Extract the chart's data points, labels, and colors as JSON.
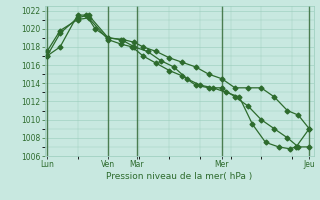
{
  "bg_color": "#c8e8e0",
  "grid_color": "#99ccbb",
  "line_color": "#2d6b2d",
  "marker_color": "#2d6b2d",
  "xlabel": "Pression niveau de la mer( hPa )",
  "ylim": [
    1006.0,
    1022.5
  ],
  "yticks": [
    1007,
    1009,
    1011,
    1013,
    1015,
    1017,
    1019,
    1021
  ],
  "vline_color": "#336633",
  "line1_x": [
    0.0,
    0.3,
    0.7,
    0.95,
    1.4,
    1.75,
    2.0,
    2.2,
    2.5,
    2.8,
    3.1,
    3.4,
    3.7,
    4.0,
    4.3,
    4.6,
    4.9,
    5.2,
    5.5,
    5.75,
    6.0
  ],
  "line1_y": [
    1017.0,
    1019.5,
    1021.2,
    1021.5,
    1019.0,
    1018.8,
    1018.5,
    1018.0,
    1017.5,
    1016.8,
    1016.3,
    1015.8,
    1015.0,
    1014.5,
    1013.5,
    1013.5,
    1013.5,
    1012.5,
    1011.0,
    1010.5,
    1009.0
  ],
  "line2_x": [
    0.0,
    0.3,
    0.7,
    0.95,
    1.4,
    1.7,
    1.95,
    2.2,
    2.5,
    2.8,
    3.1,
    3.4,
    3.7,
    4.0,
    4.3,
    4.6,
    4.9,
    5.2,
    5.5,
    5.75,
    6.0
  ],
  "line2_y": [
    1017.5,
    1019.8,
    1021.0,
    1021.2,
    1018.8,
    1018.3,
    1018.0,
    1017.0,
    1016.2,
    1015.4,
    1014.8,
    1013.8,
    1013.5,
    1013.5,
    1012.5,
    1011.5,
    1010.0,
    1009.0,
    1008.0,
    1007.0,
    1007.0
  ],
  "line3_x": [
    0.0,
    0.3,
    0.7,
    0.9,
    1.1,
    1.4,
    1.7,
    2.0,
    2.3,
    2.6,
    2.9,
    3.2,
    3.5,
    3.8,
    4.1,
    4.4,
    4.7,
    5.0,
    5.3,
    5.55,
    5.7,
    6.0
  ],
  "line3_y": [
    1017.0,
    1018.0,
    1021.5,
    1021.5,
    1020.0,
    1019.0,
    1018.8,
    1018.0,
    1017.5,
    1016.5,
    1015.8,
    1014.5,
    1013.8,
    1013.5,
    1013.0,
    1012.5,
    1009.5,
    1007.5,
    1007.0,
    1006.8,
    1007.0,
    1009.0
  ],
  "xtick_positions": [
    0.0,
    1.4,
    2.05,
    4.0,
    6.0
  ],
  "xtick_labels": [
    "Lun",
    "Ven",
    "Mar",
    "Mer",
    "Jeu"
  ],
  "vline_positions": [
    0.0,
    1.4,
    2.05,
    4.0,
    6.0
  ]
}
